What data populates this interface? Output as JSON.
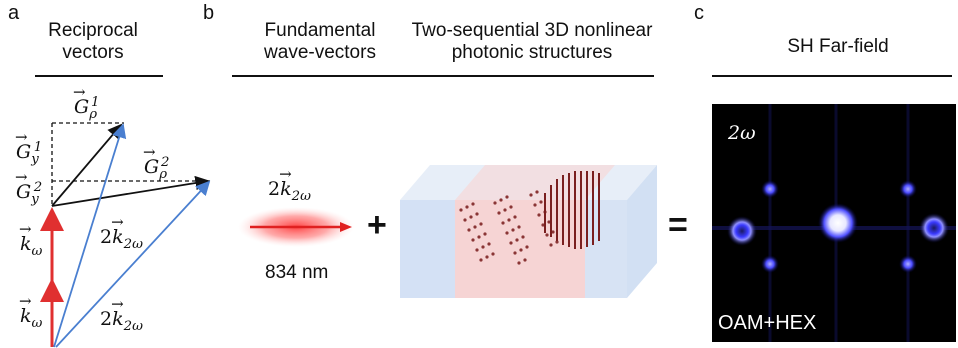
{
  "panel_a": {
    "letter": "a",
    "title_line1": "Reciprocal",
    "title_line2": "vectors",
    "labels": {
      "g_rho_1": {
        "base": "G",
        "sub": "ρ",
        "sup": "1"
      },
      "g_y_1": {
        "base": "G",
        "sub": "y",
        "sup": "1"
      },
      "g_rho_2": {
        "base": "G",
        "sub": "ρ",
        "sup": "2"
      },
      "g_y_2": {
        "base": "G",
        "sub": "y",
        "sup": "2"
      },
      "k_omega_upper": {
        "base": "k",
        "sub": "ω"
      },
      "k_omega_lower": {
        "base": "k",
        "sub": "ω"
      },
      "k2_upper": {
        "prefix": "2",
        "base": "k",
        "sub": "2ω"
      },
      "k2_lower": {
        "prefix": "2",
        "base": "k",
        "sub": "2ω"
      }
    },
    "colors": {
      "k_omega": "#e03030",
      "k_2omega": "#4a7fd0",
      "g": "#111111"
    }
  },
  "panel_b": {
    "letter": "b",
    "title1_line1": "Fundamental",
    "title1_line2": "wave-vectors",
    "title2_line1": "Two-sequential 3D nonlinear",
    "title2_line2": "photonic structures",
    "beam_label": {
      "prefix": "2",
      "base": "k",
      "sub": "2ω"
    },
    "wavelength": "834 nm",
    "plus_symbol": "+",
    "equals_symbol": "=",
    "colors": {
      "beam": "#ff5050",
      "crystal_face": "#bcd2ef",
      "crystal_pink": "#f7d0d0",
      "dots": "#8a3030"
    }
  },
  "panel_c": {
    "letter": "c",
    "title": "SH Far-field",
    "harmonic_label": "2ω",
    "caption": "OAM+HEX",
    "colors": {
      "background": "#000000",
      "spot": "#4b4bff",
      "center": "#ffffff"
    }
  }
}
